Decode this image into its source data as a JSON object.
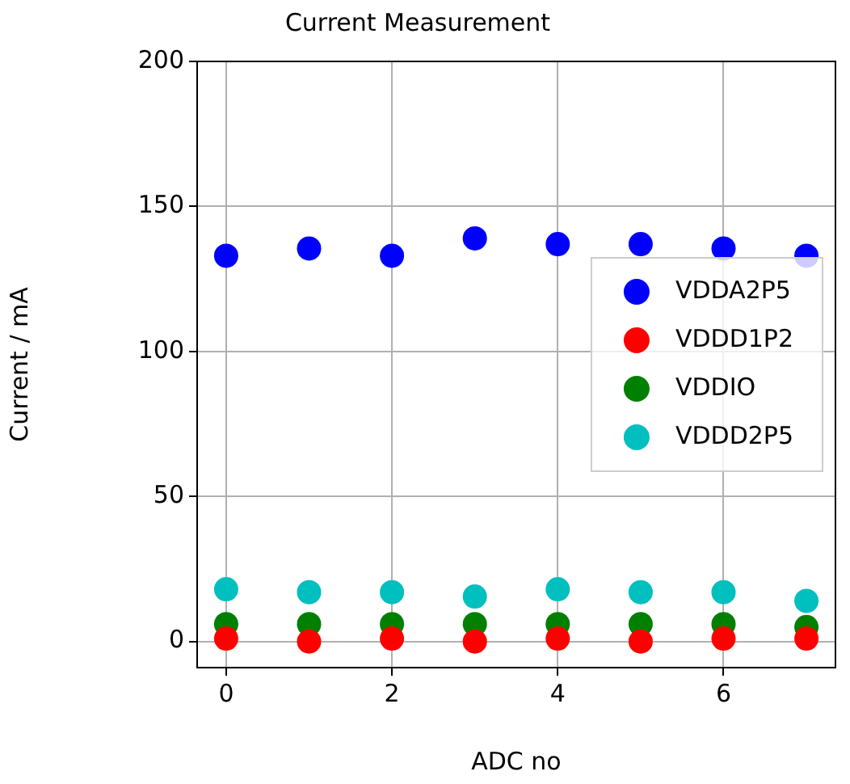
{
  "chart_data": {
    "type": "scatter",
    "title": "Current Measurement",
    "xlabel": "ADC no",
    "ylabel": "Current / mA",
    "x": [
      0,
      1,
      2,
      3,
      4,
      5,
      6,
      7
    ],
    "series": [
      {
        "name": "VDDA2P5",
        "color": "#0000ff",
        "values": [
          133,
          135.5,
          133,
          139,
          137,
          137,
          135.5,
          133
        ]
      },
      {
        "name": "VDDD1P2",
        "color": "#ff0000",
        "values": [
          1,
          0,
          1,
          0,
          1,
          0,
          1,
          1
        ]
      },
      {
        "name": "VDDIO",
        "color": "#008000",
        "values": [
          6,
          6,
          6,
          6,
          6,
          6,
          6,
          5
        ]
      },
      {
        "name": "VDDD2P5",
        "color": "#00bfbf",
        "values": [
          18,
          17,
          17,
          15.5,
          18,
          17,
          17,
          14
        ]
      }
    ],
    "xlim": [
      -0.35,
      7.35
    ],
    "xticks": [
      0,
      2,
      4,
      6
    ],
    "ylim": [
      -9,
      200
    ],
    "yticks": [
      0,
      50,
      100,
      150,
      200
    ],
    "grid": true,
    "legend": "center right",
    "marker": "circle"
  }
}
